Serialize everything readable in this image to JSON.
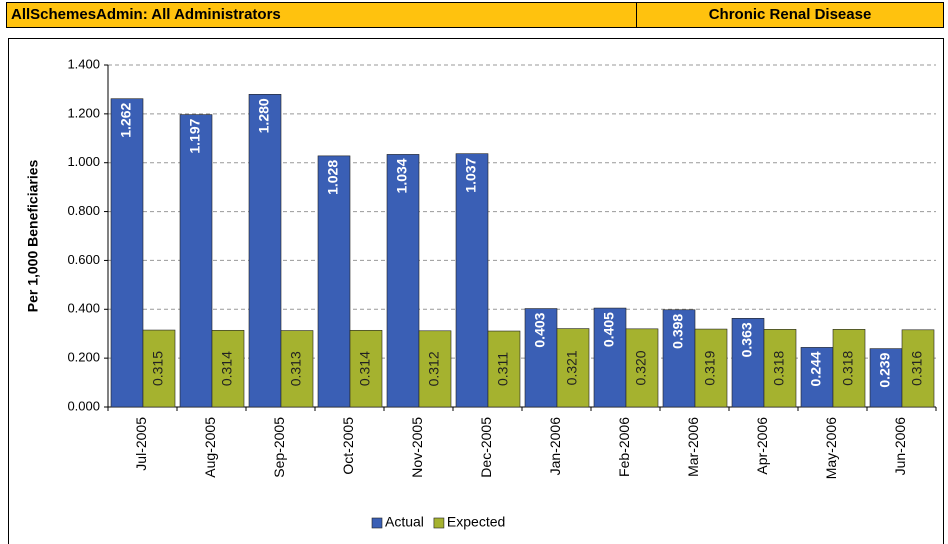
{
  "header": {
    "left": "AllSchemesAdmin: All Administrators",
    "right": "Chronic Renal Disease"
  },
  "chart_data": {
    "type": "bar",
    "ylabel": "Per 1,000 Beneficiaries",
    "categories": [
      "Jul-2005",
      "Aug-2005",
      "Sep-2005",
      "Oct-2005",
      "Nov-2005",
      "Dec-2005",
      "Jan-2006",
      "Feb-2006",
      "Mar-2006",
      "Apr-2006",
      "May-2006",
      "Jun-2006"
    ],
    "series": [
      {
        "name": "Actual",
        "color": "#3a5fb5",
        "values": [
          1.262,
          1.197,
          1.28,
          1.028,
          1.034,
          1.037,
          0.403,
          0.405,
          0.398,
          0.363,
          0.244,
          0.239
        ],
        "value_labels": [
          "1.262",
          "1.197",
          "1.280",
          "1.028",
          "1.034",
          "1.037",
          "0.403",
          "0.405",
          "0.398",
          "0.363",
          "0.244",
          "0.239"
        ]
      },
      {
        "name": "Expected",
        "color": "#a5b22f",
        "values": [
          0.315,
          0.314,
          0.313,
          0.314,
          0.312,
          0.311,
          0.321,
          0.32,
          0.319,
          0.318,
          0.318,
          0.316
        ],
        "value_labels": [
          "0.315",
          "0.314",
          "0.313",
          "0.314",
          "0.312",
          "0.311",
          "0.321",
          "0.320",
          "0.319",
          "0.318",
          "0.318",
          "0.316"
        ]
      }
    ],
    "ylim": [
      0,
      1.4
    ],
    "yticks": [
      {
        "value": 0,
        "label": "0.000"
      },
      {
        "value": 0.2,
        "label": "0.200"
      },
      {
        "value": 0.4,
        "label": "0.400"
      },
      {
        "value": 0.6,
        "label": "0.600"
      },
      {
        "value": 0.8,
        "label": "0.800"
      },
      {
        "value": 1.0,
        "label": "1.000"
      },
      {
        "value": 1.2,
        "label": "1.200"
      },
      {
        "value": 1.4,
        "label": "1.400"
      }
    ],
    "grid": true,
    "legend": "bottom"
  }
}
